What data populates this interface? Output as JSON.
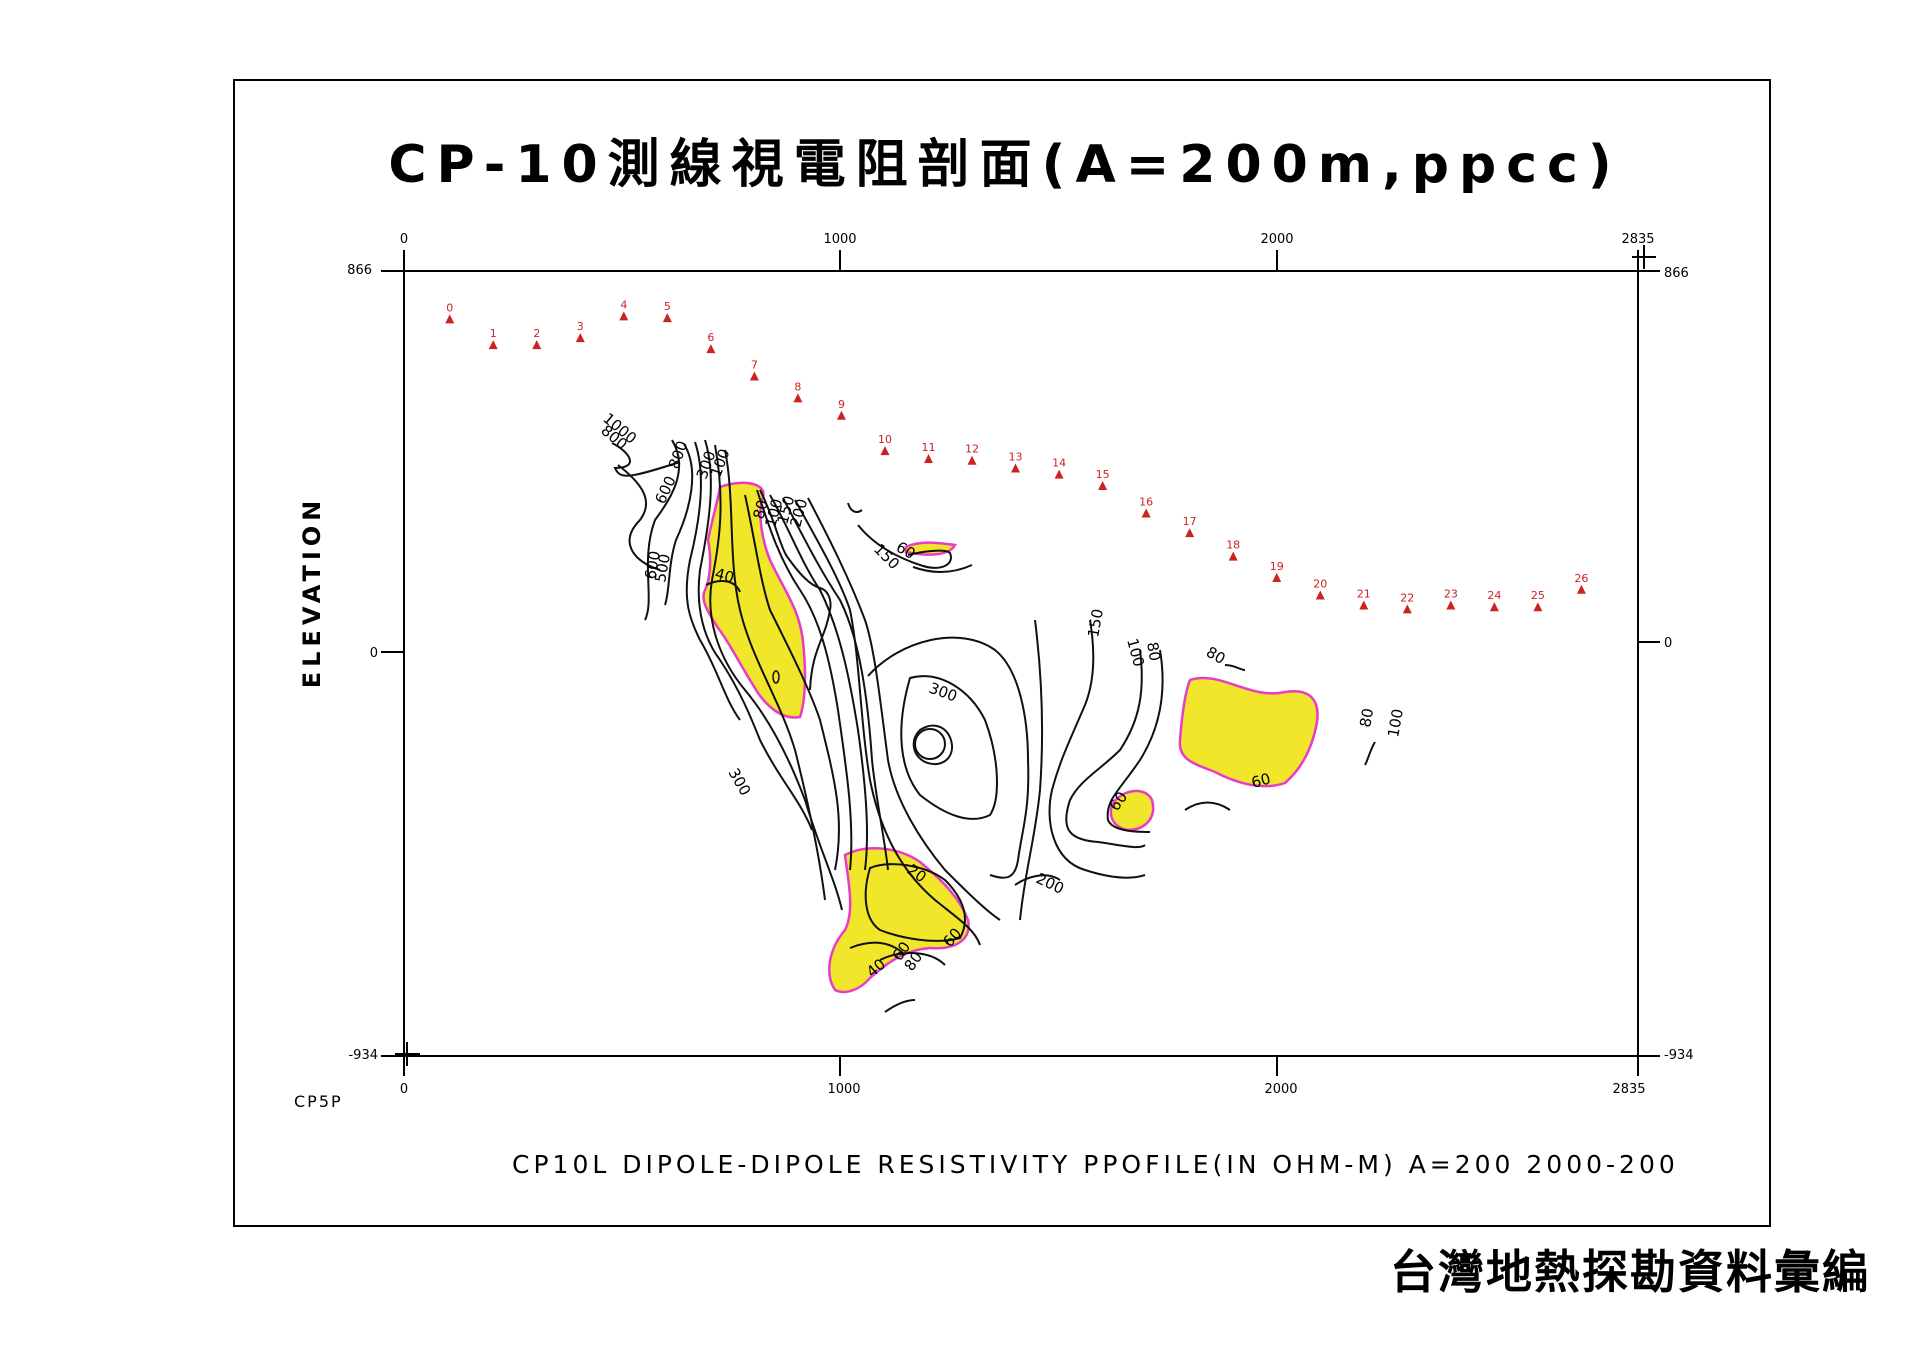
{
  "title": "CP-10測線視電阻剖面(A=200m,ppcc)",
  "caption": "CP10L DIPOLE-DIPOLE RESISTIVITY PPOFILE(IN OHM-M) A=200 2000-200",
  "source": "台灣地熱探勘資料彙編",
  "station_label": "CP5P",
  "colors": {
    "stations": "#cc2222",
    "low_fill": "#f2e62a",
    "low_outline": "#e83cc8",
    "contour": "#111111"
  },
  "chart_data": {
    "type": "contour",
    "ylabel": "ELEVATION",
    "xlim": [
      0,
      2835
    ],
    "ylim": [
      -934,
      866
    ],
    "x_ticks_top": [
      "0",
      "1000",
      "2000",
      "2835"
    ],
    "x_ticks_bottom": [
      "0",
      "1000",
      "2000",
      "2835"
    ],
    "y_ticks_left": [
      "866",
      "0",
      "-934"
    ],
    "y_ticks_right": [
      "866",
      "0",
      "-934"
    ],
    "stations": [
      {
        "label": "0",
        "x": 105,
        "y": 755
      },
      {
        "label": "1",
        "x": 205,
        "y": 696
      },
      {
        "label": "2",
        "x": 305,
        "y": 696
      },
      {
        "label": "3",
        "x": 405,
        "y": 712
      },
      {
        "label": "4",
        "x": 505,
        "y": 762
      },
      {
        "label": "5",
        "x": 605,
        "y": 758
      },
      {
        "label": "6",
        "x": 705,
        "y": 687
      },
      {
        "label": "7",
        "x": 805,
        "y": 624
      },
      {
        "label": "8",
        "x": 905,
        "y": 574
      },
      {
        "label": "9",
        "x": 1005,
        "y": 534
      },
      {
        "label": "10",
        "x": 1105,
        "y": 453
      },
      {
        "label": "11",
        "x": 1205,
        "y": 435
      },
      {
        "label": "12",
        "x": 1305,
        "y": 431
      },
      {
        "label": "13",
        "x": 1405,
        "y": 413
      },
      {
        "label": "14",
        "x": 1505,
        "y": 399
      },
      {
        "label": "15",
        "x": 1605,
        "y": 373
      },
      {
        "label": "16",
        "x": 1705,
        "y": 310
      },
      {
        "label": "17",
        "x": 1805,
        "y": 265
      },
      {
        "label": "18",
        "x": 1905,
        "y": 211
      },
      {
        "label": "19",
        "x": 2005,
        "y": 162
      },
      {
        "label": "20",
        "x": 2105,
        "y": 122
      },
      {
        "label": "21",
        "x": 2205,
        "y": 99
      },
      {
        "label": "22",
        "x": 2305,
        "y": 90
      },
      {
        "label": "23",
        "x": 2405,
        "y": 99
      },
      {
        "label": "24",
        "x": 2505,
        "y": 95
      },
      {
        "label": "25",
        "x": 2605,
        "y": 95
      },
      {
        "label": "26",
        "x": 2705,
        "y": 135
      }
    ],
    "contour_labels": [
      "1000",
      "800",
      "800",
      "600",
      "300",
      "100",
      "600",
      "500",
      "80",
      "100",
      "150",
      "200",
      "40",
      "60",
      "150",
      "300",
      "300",
      "150",
      "100",
      "80",
      "80",
      "60",
      "60",
      "80",
      "100",
      "200",
      "20",
      "60",
      "60",
      "80",
      "40"
    ]
  }
}
